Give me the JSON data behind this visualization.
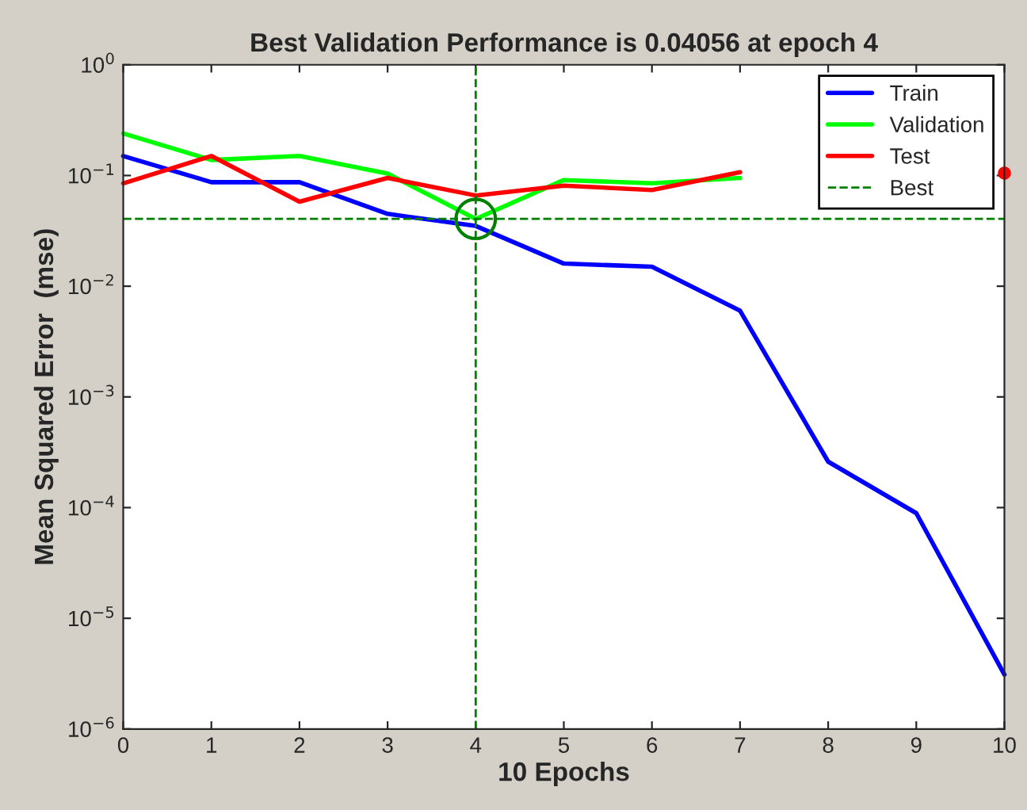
{
  "chart_data": {
    "type": "line",
    "title": "Best Validation Performance is 0.04056 at epoch 4",
    "xlabel": "10 Epochs",
    "ylabel": "Mean Squared Error  (mse)",
    "x": [
      0,
      1,
      2,
      3,
      4,
      5,
      6,
      7,
      8,
      9,
      10
    ],
    "series": [
      {
        "name": "Train",
        "color": "#0000ff",
        "values": [
          0.15,
          0.087,
          0.087,
          0.045,
          0.035,
          0.016,
          0.015,
          0.006,
          0.00026,
          8.9e-05,
          3.1e-06
        ]
      },
      {
        "name": "Validation",
        "color": "#00ff00",
        "values": [
          0.24,
          0.138,
          0.15,
          0.104,
          0.04056,
          0.091,
          0.085,
          0.095,
          null,
          null,
          null
        ]
      },
      {
        "name": "Test",
        "color": "#ff0000",
        "values": [
          0.085,
          0.15,
          0.058,
          0.095,
          0.066,
          0.081,
          0.074,
          0.107,
          null,
          null,
          0.105
        ]
      },
      {
        "type": "scatter",
        "x": [
          4
        ],
        "color": "#008000",
        "marker": "circle",
        "values": [
          0.04056
        ]
      }
    ],
    "ref_lines": [
      {
        "axis": "y",
        "value": 0.04056,
        "label": "Best",
        "color": "#008000",
        "line_style": "dashed"
      },
      {
        "axis": "x",
        "value": 4,
        "color": "#008000",
        "line_style": "dashed"
      }
    ],
    "log": true,
    "xlim": [
      0,
      10
    ],
    "xticks": [
      0,
      1,
      2,
      3,
      4,
      5,
      6,
      7,
      8,
      9,
      10
    ],
    "ylim": [
      1e-06,
      1
    ],
    "yticks": [
      {
        "value": 1e-06,
        "label": "10$^{−6}$"
      },
      {
        "value": 1e-05,
        "label": "10$^{−5}$"
      },
      {
        "value": 0.0001,
        "label": "10$^{−4}$"
      },
      {
        "value": 0.001,
        "label": "10$^{−3}$"
      },
      {
        "value": 0.01,
        "label": "10$^{−2}$"
      },
      {
        "value": 0.1,
        "label": "10$^{−1}$"
      },
      {
        "value": 1,
        "label": "10$^{0}$"
      }
    ],
    "grid": false,
    "legend": "top right"
  }
}
